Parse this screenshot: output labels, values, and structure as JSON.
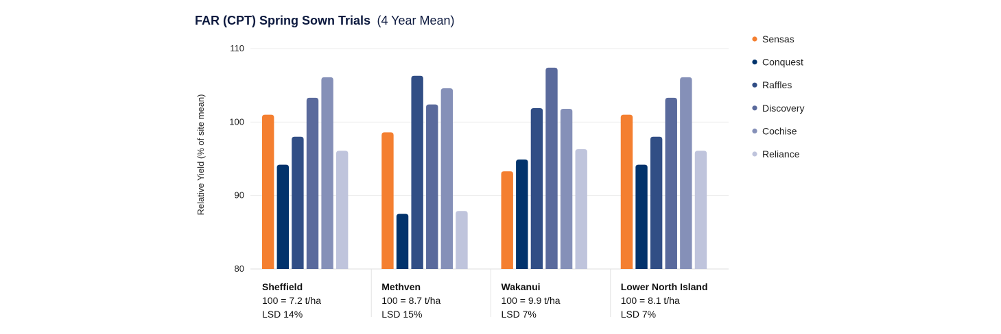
{
  "chart_data": {
    "type": "bar",
    "title": "FAR (CPT) Spring Sown Trials",
    "subtitle": "(4 Year Mean)",
    "xlabel": "",
    "ylabel": "Relative Yield (% of site mean)",
    "ylim": [
      80,
      110
    ],
    "yticks": [
      80,
      90,
      100,
      110
    ],
    "grid": true,
    "legend_position": "right",
    "categories": [
      {
        "name": "Sheffield",
        "line2": "100 = 7.2 t/ha",
        "line3": "LSD 14%"
      },
      {
        "name": "Methven",
        "line2": "100 = 8.7 t/ha",
        "line3": "LSD 15%"
      },
      {
        "name": "Wakanui",
        "line2": "100 = 9.9 t/ha",
        "line3": "LSD 7%"
      },
      {
        "name": "Lower North Island",
        "line2": "100 = 8.1 t/ha",
        "line3": "LSD 7%"
      }
    ],
    "series": [
      {
        "name": "Sensas",
        "color": "#f47f30",
        "values": [
          101.0,
          98.6,
          93.3,
          101.0
        ]
      },
      {
        "name": "Conquest",
        "color": "#02336c",
        "values": [
          94.2,
          87.5,
          94.9,
          94.2
        ]
      },
      {
        "name": "Raffles",
        "color": "#314e85",
        "values": [
          98.0,
          106.3,
          101.9,
          98.0
        ]
      },
      {
        "name": "Discovery",
        "color": "#5a6a9c",
        "values": [
          103.3,
          102.4,
          107.4,
          103.3
        ]
      },
      {
        "name": "Cochise",
        "color": "#8590b8",
        "values": [
          106.1,
          104.6,
          101.8,
          106.1
        ]
      },
      {
        "name": "Reliance",
        "color": "#bfc4dc",
        "values": [
          96.1,
          87.9,
          96.3,
          96.1
        ]
      }
    ]
  }
}
